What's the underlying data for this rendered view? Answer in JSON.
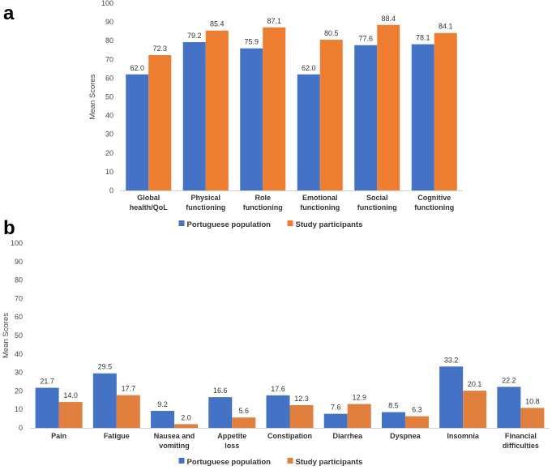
{
  "chart_data": [
    {
      "panel_label": "a",
      "type": "bar",
      "ylabel": "Mean Scores",
      "ylim": [
        0,
        100
      ],
      "yticks": [
        0,
        10,
        20,
        30,
        40,
        50,
        60,
        70,
        80,
        90,
        100
      ],
      "categories": [
        [
          "Global",
          "health/QoL"
        ],
        [
          "Physical",
          "functioning"
        ],
        [
          "Role",
          "functioning"
        ],
        [
          "Emotional",
          "functioning"
        ],
        [
          "Social",
          "functioning"
        ],
        [
          "Cognitive",
          "functioning"
        ]
      ],
      "series": [
        {
          "name": "Portuguese population",
          "color": "#4472C4",
          "values": [
            62.0,
            79.2,
            75.9,
            62.0,
            77.6,
            78.1
          ]
        },
        {
          "name": "Study participants",
          "color": "#ED7D31",
          "values": [
            72.3,
            85.4,
            87.1,
            80.5,
            88.4,
            84.1
          ]
        }
      ],
      "legend": "bottom",
      "grid": false
    },
    {
      "panel_label": "b",
      "type": "bar",
      "ylabel": "Mean Scores",
      "ylim": [
        0,
        100
      ],
      "yticks": [
        0,
        10,
        20,
        30,
        40,
        50,
        60,
        70,
        80,
        90,
        100
      ],
      "categories": [
        [
          "Pain"
        ],
        [
          "Fatigue"
        ],
        [
          "Nausea and",
          "vomiting"
        ],
        [
          "Appetite",
          "loss"
        ],
        [
          "Constipation"
        ],
        [
          "Diarrhea"
        ],
        [
          "Dyspnea"
        ],
        [
          "Insomnia"
        ],
        [
          "Financial",
          "difficulties"
        ]
      ],
      "series": [
        {
          "name": "Portuguese population",
          "color": "#4472C4",
          "values": [
            21.7,
            29.5,
            9.2,
            16.6,
            17.6,
            7.6,
            8.5,
            33.2,
            22.2
          ]
        },
        {
          "name": "Study participants",
          "color": "#E07F3E",
          "values": [
            14.0,
            17.7,
            2.0,
            5.6,
            12.3,
            12.9,
            6.3,
            20.1,
            10.8
          ]
        }
      ],
      "legend": "bottom",
      "grid": false
    }
  ]
}
